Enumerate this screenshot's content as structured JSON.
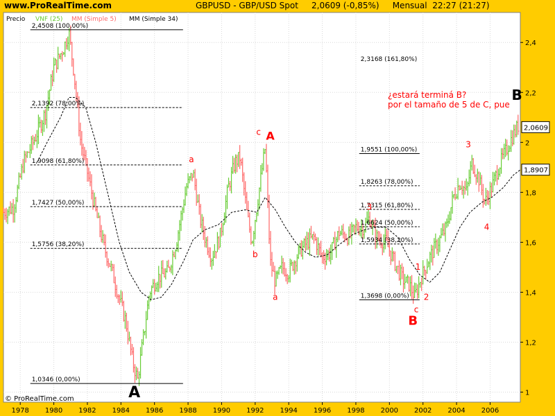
{
  "header": {
    "site": "www.ProRealTime.com",
    "instrument": "GBPUSD - GBP/USD Spot",
    "last": "2,0609 (-0,85%)",
    "period": "Mensual  22:27 (21:27)"
  },
  "legend": {
    "price": "Precio",
    "vnf": "VNF (25)",
    "ma5": "MM (Simple 5)",
    "ma34": "MM (Simple 34)"
  },
  "footer": {
    "copyright": "© ProRealTime.com"
  },
  "colors": {
    "up": "#66cc33",
    "down": "#ff6666",
    "ma5": "#ff6666",
    "ma34": "#000000",
    "annotation": "#ff0000",
    "background": "#ffffff"
  },
  "chart_data": {
    "type": "bar",
    "x_ticks": [
      "1978",
      "1980",
      "1982",
      "1984",
      "1986",
      "1988",
      "1990",
      "1992",
      "1994",
      "1996",
      "1998",
      "2000",
      "2002",
      "2004",
      "2006"
    ],
    "x_tick_years": [
      1978,
      1980,
      1982,
      1984,
      1986,
      1988,
      1990,
      1992,
      1994,
      1996,
      1998,
      2000,
      2002,
      2004,
      2006
    ],
    "x_range": [
      1977.0,
      2007.8
    ],
    "y_range": [
      0.96,
      2.52
    ],
    "y_ticks": [
      "1",
      "1,2",
      "1,4",
      "1,6",
      "1,8",
      "2",
      "2,2",
      "2,4"
    ],
    "y_tick_values": [
      1.0,
      1.2,
      1.4,
      1.6,
      1.8,
      2.0,
      2.2,
      2.4
    ],
    "last_price_label": "2,0609",
    "last_price": 2.0609,
    "ma34_price_label": "1,8907",
    "ma34_price": 1.8907,
    "price_path": [
      [
        1977.0,
        1.72
      ],
      [
        1977.6,
        1.74
      ],
      [
        1978.2,
        1.92
      ],
      [
        1978.9,
        2.02
      ],
      [
        1979.5,
        2.12
      ],
      [
        1980.0,
        2.3
      ],
      [
        1980.6,
        2.38
      ],
      [
        1980.9,
        2.44
      ],
      [
        1981.2,
        2.28
      ],
      [
        1981.6,
        2.0
      ],
      [
        1982.0,
        1.88
      ],
      [
        1982.5,
        1.72
      ],
      [
        1983.0,
        1.58
      ],
      [
        1983.4,
        1.5
      ],
      [
        1983.8,
        1.4
      ],
      [
        1984.3,
        1.28
      ],
      [
        1984.7,
        1.12
      ],
      [
        1985.0,
        1.05
      ],
      [
        1985.3,
        1.2
      ],
      [
        1985.7,
        1.4
      ],
      [
        1986.2,
        1.46
      ],
      [
        1986.8,
        1.48
      ],
      [
        1987.3,
        1.6
      ],
      [
        1987.9,
        1.82
      ],
      [
        1988.3,
        1.88
      ],
      [
        1988.7,
        1.7
      ],
      [
        1989.0,
        1.62
      ],
      [
        1989.4,
        1.54
      ],
      [
        1989.9,
        1.62
      ],
      [
        1990.4,
        1.82
      ],
      [
        1990.8,
        1.92
      ],
      [
        1991.1,
        1.94
      ],
      [
        1991.5,
        1.72
      ],
      [
        1991.8,
        1.6
      ],
      [
        1992.3,
        1.84
      ],
      [
        1992.6,
        1.98
      ],
      [
        1992.9,
        1.52
      ],
      [
        1993.2,
        1.44
      ],
      [
        1993.6,
        1.5
      ],
      [
        1994.0,
        1.48
      ],
      [
        1994.6,
        1.56
      ],
      [
        1995.1,
        1.6
      ],
      [
        1995.5,
        1.62
      ],
      [
        1996.0,
        1.54
      ],
      [
        1996.5,
        1.56
      ],
      [
        1997.0,
        1.64
      ],
      [
        1997.6,
        1.62
      ],
      [
        1998.0,
        1.66
      ],
      [
        1998.5,
        1.66
      ],
      [
        1998.8,
        1.7
      ],
      [
        1999.2,
        1.62
      ],
      [
        1999.8,
        1.6
      ],
      [
        2000.3,
        1.52
      ],
      [
        2000.8,
        1.45
      ],
      [
        2001.2,
        1.43
      ],
      [
        2001.5,
        1.38
      ],
      [
        2001.9,
        1.46
      ],
      [
        2002.4,
        1.54
      ],
      [
        2002.9,
        1.6
      ],
      [
        2003.4,
        1.66
      ],
      [
        2003.8,
        1.78
      ],
      [
        2004.2,
        1.84
      ],
      [
        2004.6,
        1.8
      ],
      [
        2004.9,
        1.92
      ],
      [
        2005.3,
        1.86
      ],
      [
        2005.7,
        1.76
      ],
      [
        2006.1,
        1.82
      ],
      [
        2006.5,
        1.9
      ],
      [
        2006.9,
        1.96
      ],
      [
        2007.3,
        2.02
      ],
      [
        2007.7,
        2.07
      ]
    ],
    "ma34_path": [
      [
        1979.0,
        1.92
      ],
      [
        1979.6,
        2.0
      ],
      [
        1980.4,
        2.1
      ],
      [
        1980.9,
        2.18
      ],
      [
        1981.3,
        2.18
      ],
      [
        1981.9,
        2.14
      ],
      [
        1982.5,
        2.0
      ],
      [
        1983.2,
        1.8
      ],
      [
        1983.9,
        1.6
      ],
      [
        1984.5,
        1.48
      ],
      [
        1985.2,
        1.4
      ],
      [
        1985.8,
        1.37
      ],
      [
        1986.4,
        1.38
      ],
      [
        1987.0,
        1.43
      ],
      [
        1987.7,
        1.52
      ],
      [
        1988.3,
        1.61
      ],
      [
        1989.0,
        1.65
      ],
      [
        1989.8,
        1.67
      ],
      [
        1990.6,
        1.72
      ],
      [
        1991.4,
        1.73
      ],
      [
        1992.1,
        1.72
      ],
      [
        1992.6,
        1.78
      ],
      [
        1993.2,
        1.73
      ],
      [
        1993.8,
        1.66
      ],
      [
        1994.4,
        1.6
      ],
      [
        1995.0,
        1.56
      ],
      [
        1995.6,
        1.54
      ],
      [
        1996.3,
        1.55
      ],
      [
        1997.0,
        1.59
      ],
      [
        1997.8,
        1.63
      ],
      [
        1998.5,
        1.65
      ],
      [
        1999.2,
        1.66
      ],
      [
        1999.8,
        1.66
      ],
      [
        2000.5,
        1.62
      ],
      [
        2001.2,
        1.53
      ],
      [
        2001.8,
        1.47
      ],
      [
        2002.4,
        1.44
      ],
      [
        2003.0,
        1.48
      ],
      [
        2003.6,
        1.57
      ],
      [
        2004.2,
        1.66
      ],
      [
        2004.8,
        1.72
      ],
      [
        2005.5,
        1.76
      ],
      [
        2006.1,
        1.78
      ],
      [
        2006.8,
        1.82
      ],
      [
        2007.4,
        1.87
      ],
      [
        2007.8,
        1.89
      ]
    ],
    "fib_levels": [
      {
        "label": "2,4508 (100,00%)",
        "value": 2.4508,
        "x0": 1978.6,
        "x1": 1987.7,
        "style": "solid"
      },
      {
        "label": "2,1392 (78,00%)",
        "value": 2.1392,
        "x0": 1978.6,
        "x1": 1987.7,
        "style": "dashed"
      },
      {
        "label": "1,9098 (61,80%)",
        "value": 1.9098,
        "x0": 1978.6,
        "x1": 1987.7,
        "style": "dashed"
      },
      {
        "label": "1,7427 (50,00%)",
        "value": 1.7427,
        "x0": 1978.6,
        "x1": 1987.7,
        "style": "dashed"
      },
      {
        "label": "1,5756 (38,20%)",
        "value": 1.5756,
        "x0": 1978.6,
        "x1": 1987.7,
        "style": "dashed"
      },
      {
        "label": "1,0346 (0,00%)",
        "value": 1.0346,
        "x0": 1978.6,
        "x1": 1987.7,
        "style": "solid"
      },
      {
        "label": "2,3168 (161,80%)",
        "value": 2.3168,
        "x0": 1998.2,
        "x1": 2001.8,
        "style": "none"
      },
      {
        "label": "1,9551 (100,00%)",
        "value": 1.9551,
        "x0": 1998.2,
        "x1": 2001.8,
        "style": "solid"
      },
      {
        "label": "1,8263 (78,00%)",
        "value": 1.8263,
        "x0": 1998.2,
        "x1": 2001.8,
        "style": "dashed"
      },
      {
        "label": "1,7315 (61,80%)",
        "value": 1.7315,
        "x0": 1998.2,
        "x1": 2001.8,
        "style": "dashed"
      },
      {
        "label": "1,6624 (50,00%)",
        "value": 1.6624,
        "x0": 1998.2,
        "x1": 2001.8,
        "style": "dashed"
      },
      {
        "label": "1,5934 (38,20%)",
        "value": 1.5934,
        "x0": 1998.2,
        "x1": 2001.8,
        "style": "dashed"
      },
      {
        "label": "1,3698 (0,00%)",
        "value": 1.3698,
        "x0": 1998.2,
        "x1": 2001.8,
        "style": "solid"
      }
    ],
    "annotations": [
      {
        "text": "A",
        "x": 1984.8,
        "y": 0.98,
        "size": 22,
        "color": "#000000",
        "bold": true
      },
      {
        "text": "a",
        "x": 1988.2,
        "y": 1.92,
        "size": 12,
        "color": "#ff0000",
        "bold": false
      },
      {
        "text": "b",
        "x": 1992.0,
        "y": 1.54,
        "size": 12,
        "color": "#ff0000",
        "bold": false
      },
      {
        "text": "c",
        "x": 1992.2,
        "y": 2.03,
        "size": 12,
        "color": "#ff0000",
        "bold": false
      },
      {
        "text": "A",
        "x": 1992.9,
        "y": 2.01,
        "size": 16,
        "color": "#ff0000",
        "bold": true
      },
      {
        "text": "a",
        "x": 1993.2,
        "y": 1.37,
        "size": 12,
        "color": "#ff0000",
        "bold": false
      },
      {
        "text": "3",
        "x": 1998.8,
        "y": 1.73,
        "size": 12,
        "color": "#ff0000",
        "bold": false
      },
      {
        "text": "1",
        "x": 2001.7,
        "y": 1.49,
        "size": 12,
        "color": "#ff0000",
        "bold": false
      },
      {
        "text": "2",
        "x": 2002.2,
        "y": 1.37,
        "size": 12,
        "color": "#ff0000",
        "bold": false
      },
      {
        "text": "c",
        "x": 2001.6,
        "y": 1.32,
        "size": 12,
        "color": "#ff0000",
        "bold": false
      },
      {
        "text": "B",
        "x": 2001.4,
        "y": 1.27,
        "size": 18,
        "color": "#ff0000",
        "bold": true
      },
      {
        "text": "3",
        "x": 2004.7,
        "y": 1.98,
        "size": 12,
        "color": "#ff0000",
        "bold": false
      },
      {
        "text": "4",
        "x": 2005.8,
        "y": 1.65,
        "size": 12,
        "color": "#ff0000",
        "bold": false
      },
      {
        "text": "B",
        "x": 2007.6,
        "y": 2.17,
        "size": 20,
        "color": "#000000",
        "bold": true
      }
    ],
    "comment_lines": [
      "¿estará terminá B?",
      "por el tamaño de 5 de C, pue"
    ]
  }
}
